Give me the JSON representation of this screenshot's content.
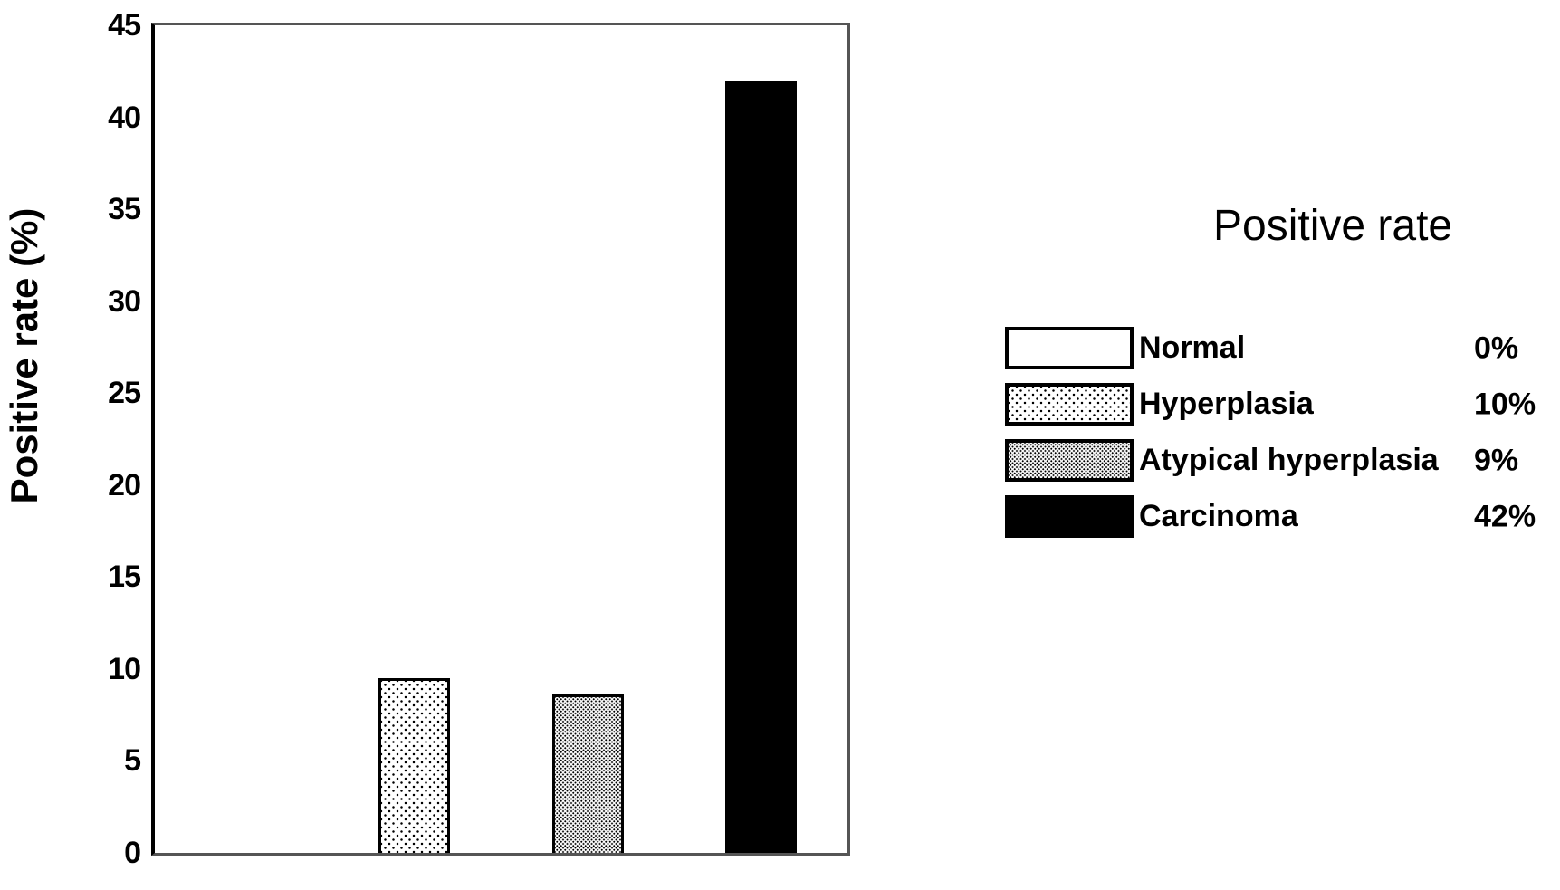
{
  "chart_data": {
    "type": "bar",
    "title": "",
    "xlabel": "",
    "ylabel": "Positive rate (%)",
    "ylim": [
      0,
      45
    ],
    "yticks": [
      0,
      5,
      10,
      15,
      20,
      25,
      30,
      35,
      40,
      45
    ],
    "grid": false,
    "frame": "full-box",
    "categories": [
      "Normal",
      "Hyperplasia",
      "Atypical hyperplasia",
      "Carcinoma"
    ],
    "values": [
      0,
      9.5,
      8.6,
      42
    ],
    "stated_percentages": [
      "0%",
      "10%",
      "9%",
      "42%"
    ],
    "bar_patterns": [
      "white",
      "dots-sparse",
      "dots-dense",
      "solid-black"
    ],
    "legend": {
      "title": "Positive rate",
      "position": "right",
      "entries": [
        {
          "label": "Normal",
          "value": "0%",
          "pattern": "white"
        },
        {
          "label": "Hyperplasia",
          "value": "10%",
          "pattern": "dots-sparse"
        },
        {
          "label": "Atypical hyperplasia",
          "value": "9%",
          "pattern": "dots-dense"
        },
        {
          "label": "Carcinoma",
          "value": "42%",
          "pattern": "solid-black"
        }
      ]
    },
    "colors": {
      "bar_fill_black": "#000000",
      "axis_black": "#000000",
      "frame_gray": "#555555",
      "background": "#ffffff"
    }
  }
}
